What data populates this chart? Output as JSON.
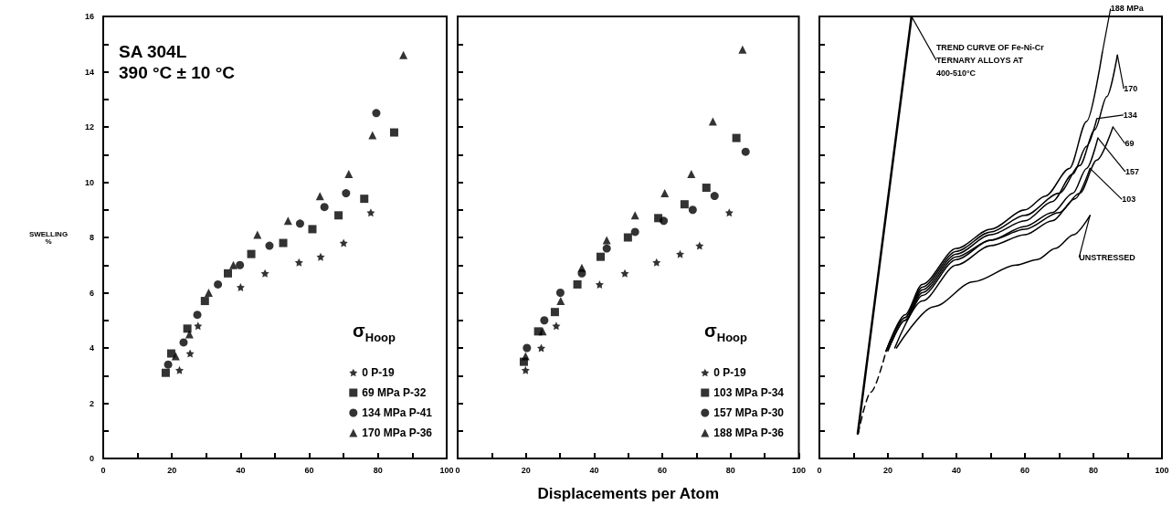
{
  "chart_data": [
    {
      "type": "scatter",
      "title": "SA 304L",
      "subtitle": "390 °C ± 10 °C",
      "ylabel": "SWELLING %",
      "legend_title": "σ$_{Hoop}$",
      "legend": "bottom right",
      "xlim": [
        0,
        100
      ],
      "xticks": [
        0,
        {
          "value": 10,
          "label": null
        },
        20,
        {
          "value": 30,
          "label": null
        },
        40,
        {
          "value": 50,
          "label": null
        },
        60,
        {
          "value": 70,
          "label": null
        },
        80,
        {
          "value": 90,
          "label": null
        },
        100
      ],
      "ylim": [
        0,
        16
      ],
      "yticks": [
        0,
        {
          "value": 1,
          "label": null
        },
        2,
        {
          "value": 3,
          "label": null
        },
        4,
        {
          "value": 5,
          "label": null
        },
        6,
        {
          "value": 7,
          "label": null
        },
        8,
        {
          "value": 9,
          "label": null
        },
        10,
        {
          "value": 11,
          "label": null
        },
        12,
        {
          "value": 13,
          "label": null
        },
        14,
        {
          "value": 15,
          "label": null
        },
        16
      ],
      "series": [
        {
          "name": "0 P-19",
          "color": "#000000",
          "marker": "star",
          "x": [
            22.2,
            25.3,
            27.6,
            40,
            47.1,
            57,
            63.3,
            70,
            77.9
          ],
          "values": [
            3.2,
            3.8,
            4.8,
            6.2,
            6.7,
            7.1,
            7.3,
            7.8,
            8.9
          ]
        },
        {
          "name": "69 MPa P-32",
          "color": "#000000",
          "marker": "square",
          "x": [
            18.2,
            19.8,
            24.5,
            29.6,
            36.3,
            43.1,
            52.4,
            60.9,
            68.5,
            76,
            84.7
          ],
          "values": [
            3.1,
            3.8,
            4.7,
            5.7,
            6.7,
            7.4,
            7.8,
            8.3,
            8.8,
            9.4,
            11.8
          ]
        },
        {
          "name": "134 MPa P-41",
          "color": "#000000",
          "marker": "circle",
          "x": [
            18.9,
            23.4,
            27.4,
            33.4,
            39.8,
            48.4,
            57.3,
            64.4,
            70.7,
            79.5
          ],
          "values": [
            3.4,
            4.2,
            5.2,
            6.3,
            7.0,
            7.7,
            8.5,
            9.1,
            9.6,
            12.5
          ]
        },
        {
          "name": "170 MPa P-36",
          "color": "#000000",
          "marker": "triangle",
          "x": [
            21.1,
            25.1,
            30.7,
            37.9,
            44.9,
            53.8,
            63.1,
            71.5,
            78.4,
            87.4
          ],
          "values": [
            3.7,
            4.5,
            6.0,
            7.0,
            8.1,
            8.6,
            9.5,
            10.3,
            11.7,
            14.6
          ]
        }
      ]
    },
    {
      "type": "scatter",
      "xlabel": "Displacements per Atom",
      "legend_title": "σ$_{Hoop}$",
      "legend": "bottom right",
      "tick_labels": "x",
      "xlim": [
        0,
        100
      ],
      "xticks": [
        0,
        {
          "value": 10,
          "label": null
        },
        20,
        {
          "value": 30,
          "label": null
        },
        40,
        {
          "value": 50,
          "label": null
        },
        60,
        {
          "value": 70,
          "label": null
        },
        80,
        {
          "value": 90,
          "label": null
        },
        100
      ],
      "ylim": [
        0,
        16
      ],
      "yticks": [
        0,
        {
          "value": 1,
          "label": null
        },
        2,
        {
          "value": 3,
          "label": null
        },
        4,
        {
          "value": 5,
          "label": null
        },
        6,
        {
          "value": 7,
          "label": null
        },
        8,
        {
          "value": 9,
          "label": null
        },
        10,
        {
          "value": 11,
          "label": null
        },
        12,
        {
          "value": 13,
          "label": null
        },
        14,
        {
          "value": 15,
          "label": null
        },
        16
      ],
      "series": [
        {
          "name": "0 P-19",
          "color": "#000000",
          "marker": "star",
          "x": [
            19.9,
            24.5,
            28.9,
            41.6,
            49,
            58.3,
            65.2,
            70.9,
            79.6
          ],
          "values": [
            3.2,
            4.0,
            4.8,
            6.3,
            6.7,
            7.1,
            7.4,
            7.7,
            8.9
          ]
        },
        {
          "name": "103 MPa P-34",
          "color": "#000000",
          "marker": "square",
          "x": [
            19.4,
            23.6,
            28.5,
            35.1,
            41.9,
            49.9,
            58.8,
            66.5,
            72.9,
            81.7
          ],
          "values": [
            3.5,
            4.6,
            5.3,
            6.3,
            7.3,
            8.0,
            8.7,
            9.2,
            9.8,
            11.6
          ]
        },
        {
          "name": "157 MPa P-30",
          "color": "#000000",
          "marker": "circle",
          "x": [
            20.3,
            25.4,
            30.1,
            36.4,
            43.7,
            52,
            60.4,
            68.9,
            75.3,
            84.4
          ],
          "values": [
            4.0,
            5.0,
            6.0,
            6.7,
            7.6,
            8.2,
            8.6,
            9.0,
            9.5,
            11.1
          ]
        },
        {
          "name": "188 MPa P-36",
          "color": "#000000",
          "marker": "triangle",
          "x": [
            19.9,
            24.9,
            30.2,
            36.4,
            43.7,
            52,
            60.7,
            68.5,
            74.8,
            83.5
          ],
          "values": [
            3.7,
            4.6,
            5.7,
            6.9,
            7.9,
            8.8,
            9.6,
            10.3,
            12.2,
            14.8
          ]
        }
      ]
    },
    {
      "type": "line",
      "tick_labels": "x",
      "marker": "none",
      "xlim": [
        0,
        100
      ],
      "xticks": [
        0,
        {
          "value": 10,
          "label": null
        },
        20,
        {
          "value": 30,
          "label": null
        },
        40,
        {
          "value": 50,
          "label": null
        },
        60,
        {
          "value": 70,
          "label": null
        },
        80,
        {
          "value": 90,
          "label": null
        },
        100
      ],
      "ylim": [
        0,
        16
      ],
      "yticks": [
        0,
        {
          "value": 1,
          "label": null
        },
        2,
        {
          "value": 3,
          "label": null
        },
        4,
        {
          "value": 5,
          "label": null
        },
        6,
        {
          "value": 7,
          "label": null
        },
        8,
        {
          "value": 9,
          "label": null
        },
        10,
        {
          "value": 11,
          "label": null
        },
        12,
        {
          "value": 13,
          "label": null
        },
        14,
        {
          "value": 15,
          "label": null
        },
        16
      ],
      "series": [
        {
          "name": "TREND CURVE OF Fe-Ni-Cr TERNARY ALLOYS AT 400-510°C",
          "color": "#000000",
          "line_style": "solid",
          "x": [
            11.2,
            26.9
          ],
          "values": [
            0.9,
            16
          ]
        },
        {
          "color": "#000000",
          "line_style": "dashed",
          "x": [
            11.3,
            15,
            19.5
          ],
          "values": [
            0.9,
            2.4,
            3.9
          ]
        },
        {
          "name": "188 MPa",
          "color": "#000000",
          "line_style": "solid",
          "x": [
            19.5,
            25,
            30,
            40,
            50,
            60,
            66,
            73,
            78,
            82.6
          ],
          "values": [
            3.9,
            5.2,
            6.3,
            7.6,
            8.3,
            9.0,
            9.5,
            10.5,
            12.2,
            14.7
          ]
        },
        {
          "name": "170",
          "color": "#000000",
          "line_style": "solid",
          "x": [
            19.5,
            25,
            30,
            40,
            50,
            60,
            70,
            76,
            80.4,
            83.9,
            87
          ],
          "values": [
            3.9,
            5.1,
            6.2,
            7.5,
            8.2,
            8.8,
            9.6,
            10.6,
            11.9,
            13.1,
            14.6
          ]
        },
        {
          "name": "134",
          "color": "#000000",
          "line_style": "solid",
          "x": [
            19.5,
            25,
            30,
            40,
            50,
            60,
            68,
            74,
            78,
            81
          ],
          "values": [
            3.9,
            5.1,
            6.1,
            7.4,
            8.1,
            8.6,
            9.3,
            10.3,
            11.3,
            12.3
          ]
        },
        {
          "name": "69",
          "color": "#000000",
          "line_style": "solid",
          "x": [
            20,
            25,
            30,
            40,
            50,
            60,
            70,
            76,
            81,
            85.7
          ],
          "values": [
            3.9,
            5.0,
            6.0,
            7.3,
            7.9,
            8.3,
            8.9,
            9.6,
            10.8,
            12.0
          ]
        },
        {
          "name": "157",
          "color": "#000000",
          "line_style": "solid",
          "x": [
            20,
            25,
            30,
            40,
            50,
            60,
            68,
            74,
            78,
            81.3
          ],
          "values": [
            3.9,
            5.0,
            5.9,
            7.2,
            7.9,
            8.4,
            8.9,
            9.6,
            10.5,
            11.6
          ]
        },
        {
          "name": "103",
          "color": "#000000",
          "line_style": "solid",
          "x": [
            22,
            30,
            40,
            50,
            60,
            68,
            74.6,
            79
          ],
          "values": [
            4.0,
            5.7,
            7.0,
            7.7,
            8.1,
            8.6,
            9.4,
            10.5
          ]
        },
        {
          "name": "UNSTRESSED",
          "color": "#000000",
          "line_style": "solid",
          "x": [
            22.5,
            33.5,
            45,
            57.4,
            63.6,
            68.9,
            74.2,
            79
          ],
          "values": [
            4.0,
            5.5,
            6.4,
            7.0,
            7.2,
            7.6,
            8.1,
            8.8
          ]
        }
      ]
    }
  ]
}
